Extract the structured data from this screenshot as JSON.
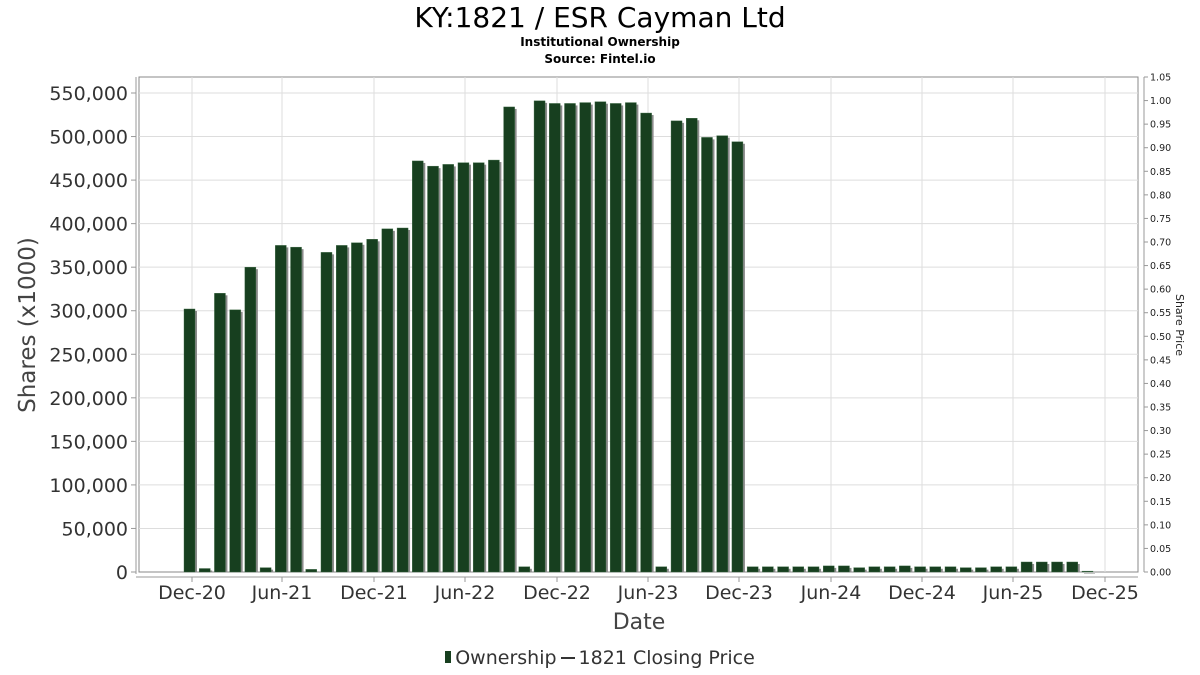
{
  "header": {
    "title": "KY:1821 / ESR Cayman Ltd",
    "subtitle": "Institutional Ownership",
    "source": "Source: Fintel.io"
  },
  "axes": {
    "x_label": "Date",
    "y_left_label": "Shares (x1000)",
    "y_right_label": "Share Price",
    "x_ticks": [
      "Dec-20",
      "Jun-21",
      "Dec-21",
      "Jun-22",
      "Dec-22",
      "Jun-23",
      "Dec-23",
      "Jun-24",
      "Dec-24",
      "Jun-25",
      "Dec-25"
    ],
    "y_left_ticks": [
      "0",
      "50,000",
      "100,000",
      "150,000",
      "200,000",
      "250,000",
      "300,000",
      "350,000",
      "400,000",
      "450,000",
      "500,000",
      "550,000"
    ],
    "y_right_ticks": [
      "0.00",
      "0.05",
      "0.10",
      "0.15",
      "0.20",
      "0.25",
      "0.30",
      "0.35",
      "0.40",
      "0.45",
      "0.50",
      "0.55",
      "0.60",
      "0.65",
      "0.70",
      "0.75",
      "0.80",
      "0.85",
      "0.90",
      "0.95",
      "1.00",
      "1.05"
    ]
  },
  "legend": {
    "ownership": "Ownership",
    "price": "1821 Closing Price"
  },
  "colors": {
    "bar": "#173f1f",
    "bar_shadow": "#8a8a8a",
    "grid": "#dddddd",
    "axis": "#999999"
  },
  "chart_data": {
    "type": "bar",
    "title": "KY:1821 / ESR Cayman Ltd",
    "subtitle": "Institutional Ownership — Source: Fintel.io",
    "xlabel": "Date",
    "ylabel": "Shares (x1000)",
    "y2label": "Share Price",
    "ylim": [
      0,
      560000
    ],
    "y2lim": [
      0,
      1.05
    ],
    "grid": true,
    "legend_position": "bottom",
    "x_tick_labels": [
      "Dec-20",
      "Jun-21",
      "Dec-21",
      "Jun-22",
      "Dec-22",
      "Jun-23",
      "Dec-23",
      "Jun-24",
      "Dec-24",
      "Jun-25",
      "Dec-25"
    ],
    "series": [
      {
        "name": "Ownership",
        "type": "bar",
        "values": [
          302000,
          4000,
          320000,
          301000,
          350000,
          5000,
          375000,
          373000,
          3000,
          367000,
          375000,
          378000,
          382000,
          394000,
          395000,
          472000,
          466000,
          468000,
          470000,
          470000,
          473000,
          534000,
          6000,
          541000,
          538000,
          538000,
          539000,
          540000,
          538000,
          539000,
          527000,
          6000,
          518000,
          521000,
          499000,
          501000,
          494000,
          6000,
          6000,
          6000,
          6000,
          6000,
          7000,
          7000,
          5000,
          6000,
          6000,
          7000,
          6000,
          6000,
          6000,
          5000,
          5000,
          6000,
          6000,
          11500,
          11500,
          11500,
          11500,
          1000
        ]
      },
      {
        "name": "1821 Closing Price",
        "type": "line",
        "values": []
      }
    ]
  }
}
